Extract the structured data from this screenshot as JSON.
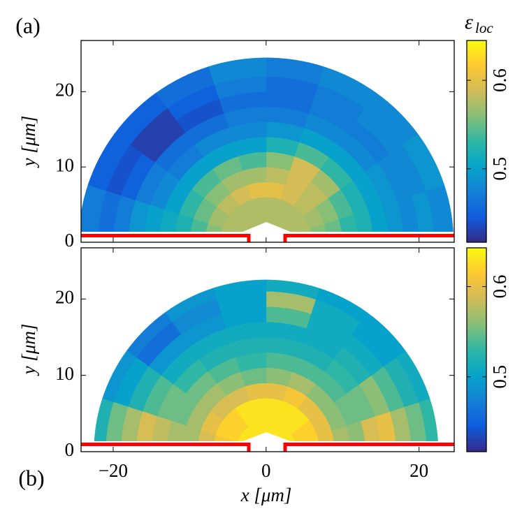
{
  "chart_data": [
    {
      "type": "polar_heatmap",
      "title": "(a)",
      "ylabel": "y [μm]",
      "xlim": [
        -24.2,
        24.6
      ],
      "ylim": [
        0,
        26.8
      ],
      "xticks": [
        {
          "value": -20,
          "label": "−20"
        },
        0,
        20
      ],
      "yticks": [
        0,
        10,
        20
      ],
      "clim": [
        0.417,
        0.645
      ],
      "cticks": [
        0.5,
        0.6
      ],
      "colorbar_label": "ε",
      "colorbar_label_sub": "loc",
      "colormap": [
        "#352a87",
        "#0f5cdd",
        "#1481d6",
        "#06a4ca",
        "#2eb7a4",
        "#87bf77",
        "#d1bb59",
        "#fec832",
        "#f9fb0e"
      ],
      "r_edges": [
        0,
        6,
        8,
        10,
        12,
        14,
        16,
        18,
        20,
        22,
        24.5
      ],
      "theta_edges": [
        0,
        18,
        36,
        54,
        72,
        90,
        108,
        126,
        144,
        162,
        180
      ],
      "values": [
        [
          0.575,
          0.575,
          0.575,
          0.575,
          0.575,
          0.575,
          0.575,
          0.575,
          0.575,
          0.575
        ],
        [
          0.56,
          0.57,
          0.58,
          0.59,
          0.6,
          0.6,
          0.59,
          0.58,
          0.57,
          0.56
        ],
        [
          0.55,
          0.56,
          0.58,
          0.59,
          0.58,
          0.57,
          0.57,
          0.56,
          0.55,
          0.54
        ],
        [
          0.53,
          0.54,
          0.57,
          0.59,
          0.56,
          0.54,
          0.55,
          0.54,
          0.53,
          0.52
        ],
        [
          0.52,
          0.52,
          0.53,
          0.54,
          0.52,
          0.5,
          0.5,
          0.5,
          0.5,
          0.51
        ],
        [
          0.5,
          0.5,
          0.5,
          0.5,
          0.49,
          0.48,
          0.48,
          0.47,
          0.48,
          0.5
        ],
        [
          0.49,
          0.49,
          0.48,
          0.48,
          0.47,
          0.47,
          0.46,
          0.46,
          0.47,
          0.49
        ],
        [
          0.48,
          0.48,
          0.47,
          0.47,
          0.46,
          0.46,
          0.44,
          0.43,
          0.45,
          0.47
        ],
        [
          0.49,
          0.48,
          0.48,
          0.47,
          0.46,
          0.47,
          0.45,
          0.43,
          0.44,
          0.46
        ],
        [
          0.48,
          0.49,
          0.48,
          0.48,
          0.47,
          0.48,
          0.46,
          0.45,
          0.45,
          0.47
        ]
      ]
    },
    {
      "type": "polar_heatmap",
      "title": "(b)",
      "ylabel": "y [μm]",
      "xlabel": "x [μm]",
      "xlim": [
        -24.2,
        24.6
      ],
      "ylim": [
        0,
        26.7
      ],
      "xticks": [
        {
          "value": -20,
          "label": "−20"
        },
        0,
        20
      ],
      "yticks": [
        0,
        10,
        20
      ],
      "clim": [
        0.417,
        0.643
      ],
      "cticks": [
        0.5,
        0.6
      ],
      "colormap": [
        "#352a87",
        "#0f5cdd",
        "#1481d6",
        "#06a4ca",
        "#2eb7a4",
        "#87bf77",
        "#d1bb59",
        "#fec832",
        "#f9fb0e"
      ],
      "r_edges": [
        0,
        4,
        7,
        9,
        11,
        13,
        15,
        17,
        19,
        21,
        22.5
      ],
      "theta_edges": [
        0,
        18,
        36,
        54,
        72,
        90,
        108,
        126,
        144,
        162,
        180
      ],
      "values": [
        [
          0.63,
          0.63,
          0.63,
          0.63,
          0.63,
          0.63,
          0.63,
          0.63,
          0.63,
          0.63
        ],
        [
          0.62,
          0.62,
          0.63,
          0.63,
          0.63,
          0.63,
          0.63,
          0.62,
          0.62,
          0.61
        ],
        [
          0.6,
          0.6,
          0.6,
          0.61,
          0.6,
          0.6,
          0.59,
          0.59,
          0.6,
          0.59
        ],
        [
          0.57,
          0.56,
          0.56,
          0.57,
          0.56,
          0.55,
          0.56,
          0.57,
          0.57,
          0.57
        ],
        [
          0.56,
          0.55,
          0.54,
          0.54,
          0.54,
          0.53,
          0.54,
          0.55,
          0.55,
          0.57
        ],
        [
          0.59,
          0.55,
          0.53,
          0.52,
          0.52,
          0.52,
          0.52,
          0.53,
          0.55,
          0.58
        ],
        [
          0.6,
          0.56,
          0.52,
          0.51,
          0.51,
          0.51,
          0.51,
          0.51,
          0.54,
          0.59
        ],
        [
          0.57,
          0.54,
          0.51,
          0.51,
          0.54,
          0.5,
          0.49,
          0.49,
          0.52,
          0.57
        ],
        [
          0.55,
          0.52,
          0.5,
          0.51,
          0.57,
          0.5,
          0.48,
          0.46,
          0.5,
          0.55
        ],
        [
          0.53,
          0.51,
          0.5,
          0.5,
          0.51,
          0.5,
          0.49,
          0.47,
          0.49,
          0.52
        ]
      ]
    }
  ]
}
